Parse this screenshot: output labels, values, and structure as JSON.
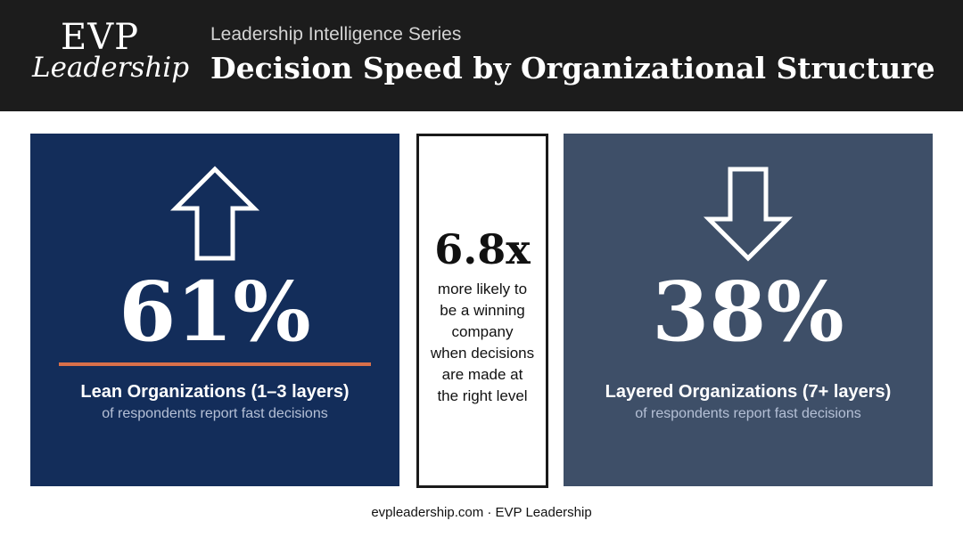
{
  "header": {
    "logo_top": "EVP",
    "logo_bottom": "Leadership",
    "series": "Leadership Intelligence Series",
    "title": "Decision Speed by Organizational Structure"
  },
  "left_panel": {
    "icon": "arrow-up-icon",
    "stat": "61%",
    "label": "Lean Organizations (1–3 layers)",
    "sub": "of respondents report fast decisions",
    "color": "#132d5a",
    "accent": "#d9704a"
  },
  "center": {
    "stat": "6.8x",
    "lines": [
      "more likely to",
      "be a winning",
      "company",
      "when decisions",
      "are made at",
      "the right level"
    ]
  },
  "right_panel": {
    "icon": "arrow-down-icon",
    "stat": "38%",
    "label": "Layered Organizations (7+ layers)",
    "sub": "of respondents report fast decisions",
    "color": "#3e4f68"
  },
  "footer": {
    "text": "evpleadership.com · EVP Leadership"
  }
}
